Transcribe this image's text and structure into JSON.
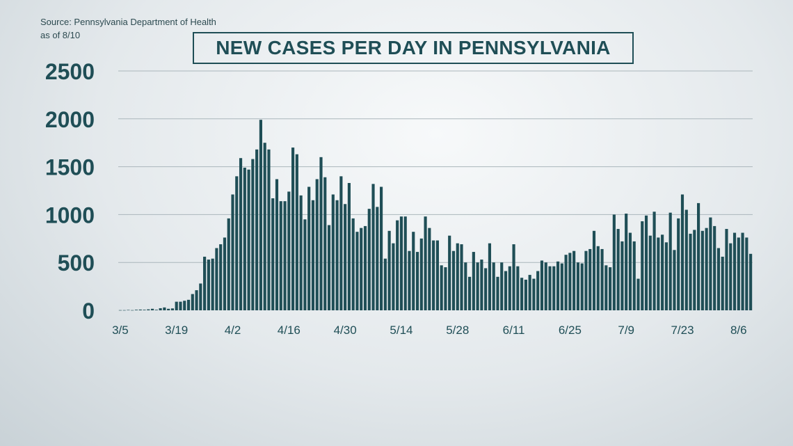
{
  "source": {
    "line1": "Source: Pennsylvania Department of Health",
    "line2": "as of 8/10"
  },
  "colors": {
    "bar": "#1f4e56",
    "grid": "#aab6bb",
    "text": "#1f4e56"
  },
  "chart_data": {
    "type": "bar",
    "title": "NEW CASES PER DAY IN PENNSYLVANIA",
    "xlabel": "",
    "ylabel": "",
    "ylim": [
      0,
      2500
    ],
    "yticks": [
      0,
      500,
      1000,
      1500,
      2000,
      2500
    ],
    "grid": true,
    "start_date": "3/5",
    "xtick_labels": [
      {
        "index": 0,
        "label": "3/5"
      },
      {
        "index": 14,
        "label": "3/19"
      },
      {
        "index": 28,
        "label": "4/2"
      },
      {
        "index": 42,
        "label": "4/16"
      },
      {
        "index": 56,
        "label": "4/30"
      },
      {
        "index": 70,
        "label": "5/14"
      },
      {
        "index": 84,
        "label": "5/28"
      },
      {
        "index": 98,
        "label": "6/11"
      },
      {
        "index": 112,
        "label": "6/25"
      },
      {
        "index": 126,
        "label": "7/9"
      },
      {
        "index": 140,
        "label": "7/23"
      },
      {
        "index": 154,
        "label": "8/6"
      }
    ],
    "values": [
      2,
      2,
      4,
      2,
      6,
      8,
      6,
      10,
      16,
      6,
      22,
      30,
      16,
      20,
      90,
      90,
      100,
      110,
      170,
      210,
      280,
      560,
      530,
      540,
      650,
      690,
      760,
      960,
      1210,
      1400,
      1590,
      1490,
      1470,
      1580,
      1680,
      1990,
      1750,
      1680,
      1170,
      1370,
      1140,
      1140,
      1240,
      1700,
      1630,
      1200,
      950,
      1290,
      1150,
      1370,
      1600,
      1390,
      890,
      1210,
      1150,
      1400,
      1110,
      1330,
      960,
      820,
      860,
      880,
      1060,
      1320,
      1080,
      1290,
      540,
      830,
      700,
      940,
      980,
      980,
      620,
      820,
      610,
      750,
      980,
      860,
      730,
      730,
      470,
      450,
      780,
      620,
      700,
      690,
      500,
      350,
      610,
      500,
      530,
      440,
      700,
      500,
      350,
      500,
      410,
      460,
      690,
      460,
      340,
      320,
      370,
      330,
      410,
      520,
      500,
      460,
      460,
      510,
      490,
      580,
      600,
      620,
      500,
      490,
      620,
      640,
      830,
      670,
      640,
      470,
      450,
      1000,
      850,
      720,
      1010,
      810,
      720,
      330,
      930,
      990,
      780,
      1030,
      760,
      790,
      710,
      1020,
      630,
      960,
      1210,
      1050,
      800,
      840,
      1120,
      830,
      860,
      970,
      880,
      650,
      560,
      850,
      700,
      810,
      760,
      810,
      760,
      590
    ]
  }
}
